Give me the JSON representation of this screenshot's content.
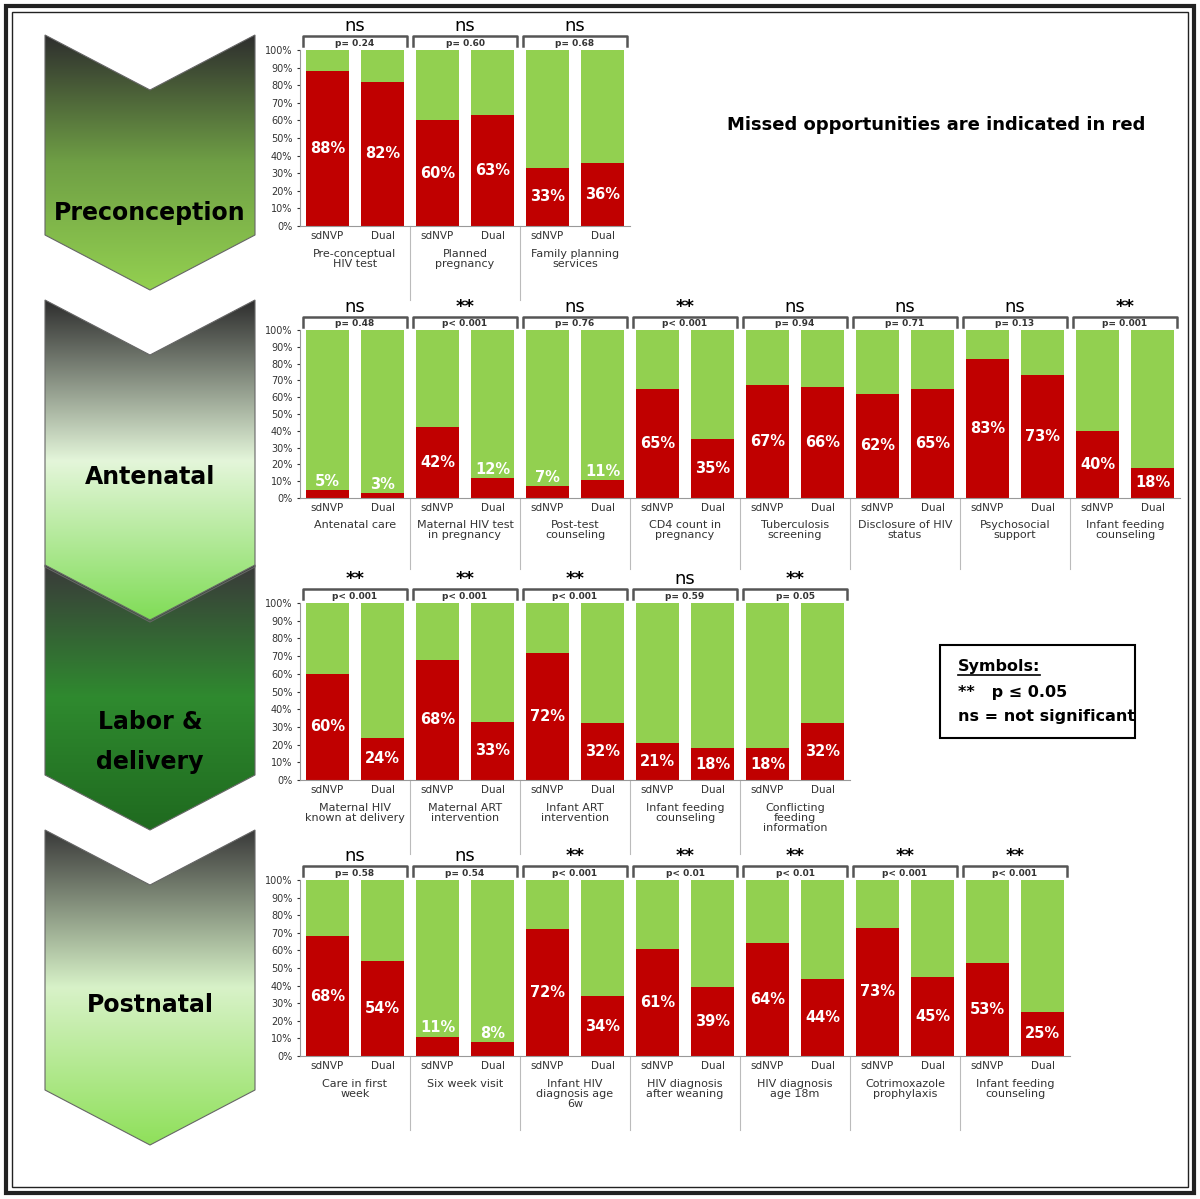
{
  "chart_data": [
    {
      "type": "bar",
      "stacked": true,
      "data_labels": true,
      "title": "Preconception",
      "categories": [
        "sdNVP",
        "Dual",
        "sdNVP",
        "Dual",
        "sdNVP",
        "Dual"
      ],
      "series": [
        {
          "color": "#c00000",
          "values": [
            88,
            82,
            60,
            63,
            33,
            36
          ],
          "value_labels": [
            "88%",
            "82%",
            "60%",
            "63%",
            "33%",
            "36%"
          ]
        },
        {
          "color": "#92d050",
          "values": [
            12,
            18,
            40,
            37,
            67,
            64
          ]
        }
      ],
      "groups": [
        {
          "label": "Pre-conceptual\nHIV test",
          "p": "p= 0.24",
          "significance": "ns"
        },
        {
          "label": "Planned\npregnancy",
          "p": "p= 0.60",
          "significance": "ns"
        },
        {
          "label": "Family planning\nservices",
          "p": "p= 0.68",
          "significance": "ns"
        }
      ],
      "ylim": [
        0,
        100
      ],
      "yticks": [
        {
          "value": 0,
          "label": "0%"
        },
        {
          "value": 10,
          "label": "10%"
        },
        {
          "value": 20,
          "label": "20%"
        },
        {
          "value": 30,
          "label": "30%"
        },
        {
          "value": 40,
          "label": "40%"
        },
        {
          "value": 50,
          "label": "50%"
        },
        {
          "value": 60,
          "label": "60%"
        },
        {
          "value": 70,
          "label": "70%"
        },
        {
          "value": 80,
          "label": "80%"
        },
        {
          "value": 90,
          "label": "90%"
        },
        {
          "value": 100,
          "label": "100%"
        }
      ]
    },
    {
      "type": "bar",
      "stacked": true,
      "data_labels": true,
      "title": "Antenatal",
      "categories": [
        "sdNVP",
        "Dual",
        "sdNVP",
        "Dual",
        "sdNVP",
        "Dual",
        "sdNVP",
        "Dual",
        "sdNVP",
        "Dual",
        "sdNVP",
        "Dual",
        "sdNVP",
        "Dual",
        "sdNVP",
        "Dual"
      ],
      "series": [
        {
          "color": "#c00000",
          "values": [
            5,
            3,
            42,
            12,
            7,
            11,
            65,
            35,
            67,
            66,
            62,
            65,
            83,
            73,
            40,
            18
          ],
          "value_labels": [
            "5%",
            "3%",
            "42%",
            "12%",
            "7%",
            "11%",
            "65%",
            "35%",
            "67%",
            "66%",
            "62%",
            "65%",
            "83%",
            "73%",
            "40%",
            "18%"
          ]
        },
        {
          "color": "#92d050",
          "values": [
            95,
            97,
            58,
            88,
            93,
            89,
            35,
            65,
            33,
            34,
            38,
            35,
            17,
            27,
            60,
            82
          ]
        }
      ],
      "groups": [
        {
          "label": "Antenatal care",
          "p": "p= 0.48",
          "significance": "ns"
        },
        {
          "label": "Maternal HIV test\nin pregnancy",
          "p": "p< 0.001",
          "significance": "**"
        },
        {
          "label": "Post-test\ncounseling",
          "p": "p= 0.76",
          "significance": "ns"
        },
        {
          "label": "CD4 count in\npregnancy",
          "p": "p< 0.001",
          "significance": "**"
        },
        {
          "label": "Tuberculosis\nscreening",
          "p": "p= 0.94",
          "significance": "ns"
        },
        {
          "label": "Disclosure of HIV\nstatus",
          "p": "p= 0.71",
          "significance": "ns"
        },
        {
          "label": "Psychosocial\nsupport",
          "p": "p= 0.13",
          "significance": "ns"
        },
        {
          "label": "Infant feeding\ncounseling",
          "p": "p= 0.001",
          "significance": "**"
        }
      ],
      "ylim": [
        0,
        100
      ],
      "yticks": [
        {
          "value": 0,
          "label": "0%"
        },
        {
          "value": 10,
          "label": "10%"
        },
        {
          "value": 20,
          "label": "20%"
        },
        {
          "value": 30,
          "label": "30%"
        },
        {
          "value": 40,
          "label": "40%"
        },
        {
          "value": 50,
          "label": "50%"
        },
        {
          "value": 60,
          "label": "60%"
        },
        {
          "value": 70,
          "label": "70%"
        },
        {
          "value": 80,
          "label": "80%"
        },
        {
          "value": 90,
          "label": "90%"
        },
        {
          "value": 100,
          "label": "100%"
        }
      ]
    },
    {
      "type": "bar",
      "stacked": true,
      "data_labels": true,
      "title": "Labor &\ndelivery",
      "categories": [
        "sdNVP",
        "Dual",
        "sdNVP",
        "Dual",
        "sdNVP",
        "Dual",
        "sdNVP",
        "Dual",
        "sdNVP",
        "Dual"
      ],
      "series": [
        {
          "color": "#c00000",
          "values": [
            60,
            24,
            68,
            33,
            72,
            32,
            21,
            18,
            18,
            32
          ],
          "value_labels": [
            "60%",
            "24%",
            "68%",
            "33%",
            "72%",
            "32%",
            "21%",
            "18%",
            "18%",
            "32%"
          ]
        },
        {
          "color": "#92d050",
          "values": [
            40,
            76,
            32,
            67,
            28,
            68,
            79,
            82,
            82,
            68
          ]
        }
      ],
      "groups": [
        {
          "label": "Maternal HIV\nknown at delivery",
          "p": "p< 0.001",
          "significance": "**"
        },
        {
          "label": "Maternal ART\nintervention",
          "p": "p< 0.001",
          "significance": "**"
        },
        {
          "label": "Infant ART\nintervention",
          "p": "p< 0.001",
          "significance": "**"
        },
        {
          "label": "Infant feeding\ncounseling",
          "p": "p= 0.59",
          "significance": "ns"
        },
        {
          "label": "Conflicting\nfeeding\ninformation",
          "p": "p= 0.05",
          "significance": "**"
        }
      ],
      "ylim": [
        0,
        100
      ],
      "yticks": [
        {
          "value": 0,
          "label": "0%"
        },
        {
          "value": 10,
          "label": "10%"
        },
        {
          "value": 20,
          "label": "20%"
        },
        {
          "value": 30,
          "label": "30%"
        },
        {
          "value": 40,
          "label": "40%"
        },
        {
          "value": 50,
          "label": "50%"
        },
        {
          "value": 60,
          "label": "60%"
        },
        {
          "value": 70,
          "label": "70%"
        },
        {
          "value": 80,
          "label": "80%"
        },
        {
          "value": 90,
          "label": "90%"
        },
        {
          "value": 100,
          "label": "100%"
        }
      ]
    },
    {
      "type": "bar",
      "stacked": true,
      "data_labels": true,
      "title": "Postnatal",
      "categories": [
        "sdNVP",
        "Dual",
        "sdNVP",
        "Dual",
        "sdNVP",
        "Dual",
        "sdNVP",
        "Dual",
        "sdNVP",
        "Dual",
        "sdNVP",
        "Dual",
        "sdNVP",
        "Dual"
      ],
      "series": [
        {
          "color": "#c00000",
          "values": [
            68,
            54,
            11,
            8,
            72,
            34,
            61,
            39,
            64,
            44,
            73,
            45,
            53,
            25
          ],
          "value_labels": [
            "68%",
            "54%",
            "11%",
            "8%",
            "72%",
            "34%",
            "61%",
            "39%",
            "64%",
            "44%",
            "73%",
            "45%",
            "53%",
            "25%"
          ]
        },
        {
          "color": "#92d050",
          "values": [
            32,
            46,
            89,
            92,
            28,
            66,
            39,
            61,
            36,
            56,
            27,
            55,
            47,
            75
          ]
        }
      ],
      "groups": [
        {
          "label": "Care in first\nweek",
          "p": "p= 0.58",
          "significance": "ns"
        },
        {
          "label": "Six week visit",
          "p": "p= 0.54",
          "significance": "ns"
        },
        {
          "label": "Infant HIV\ndiagnosis age\n6w",
          "p": "p< 0.001",
          "significance": "**"
        },
        {
          "label": "HIV diagnosis\nafter weaning",
          "p": "p< 0.01",
          "significance": "**"
        },
        {
          "label": "HIV diagnosis\nage 18m",
          "p": "p< 0.01",
          "significance": "**"
        },
        {
          "label": "Cotrimoxazole\nprophylaxis",
          "p": "p< 0.001",
          "significance": "**"
        },
        {
          "label": "Infant feeding\ncounseling",
          "p": "p< 0.001",
          "significance": "**"
        }
      ],
      "ylim": [
        0,
        100
      ],
      "yticks": [
        {
          "value": 0,
          "label": "0%"
        },
        {
          "value": 10,
          "label": "10%"
        },
        {
          "value": 20,
          "label": "20%"
        },
        {
          "value": 30,
          "label": "30%"
        },
        {
          "value": 40,
          "label": "40%"
        },
        {
          "value": 50,
          "label": "50%"
        },
        {
          "value": 60,
          "label": "60%"
        },
        {
          "value": 70,
          "label": "70%"
        },
        {
          "value": 80,
          "label": "80%"
        },
        {
          "value": 90,
          "label": "90%"
        },
        {
          "value": 100,
          "label": "100%"
        }
      ]
    }
  ],
  "annotations": {
    "note": "Missed opportunities are indicated in red",
    "symbols": {
      "title": "Symbols:",
      "lines": [
        "**   p ≤ 0.05",
        "ns = not significant"
      ]
    }
  }
}
